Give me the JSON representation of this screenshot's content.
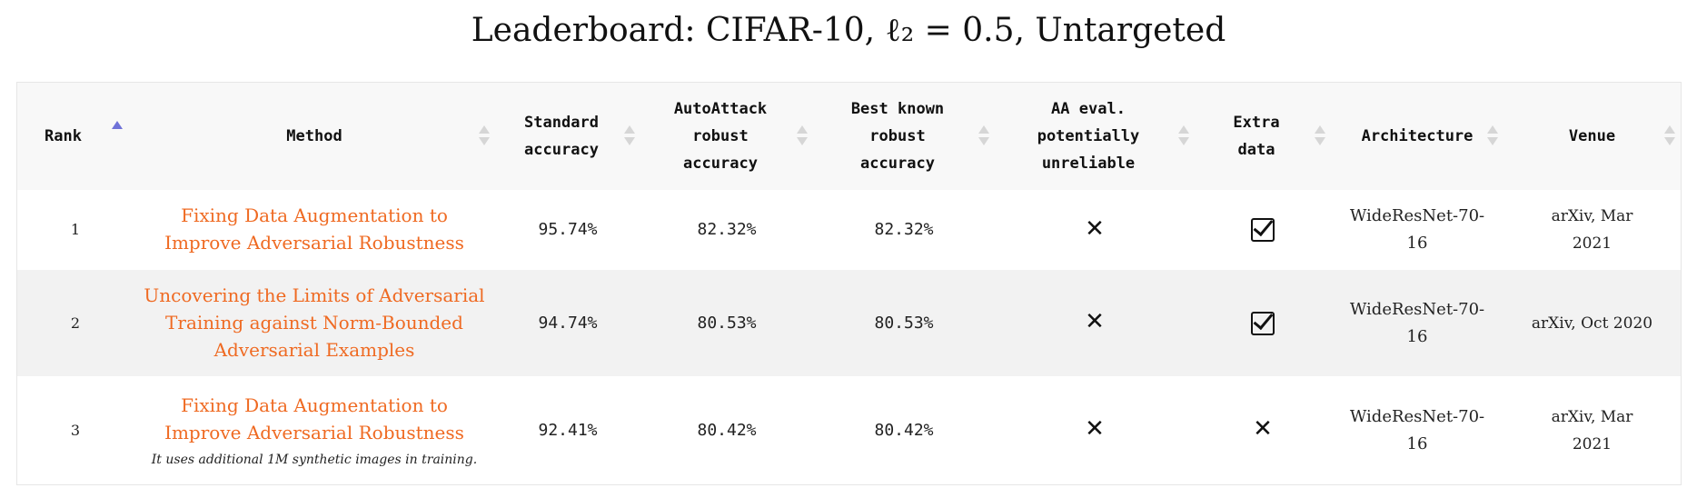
{
  "title": "Leaderboard: CIFAR-10, ℓ₂ = 0.5, Untargeted",
  "columns": [
    {
      "label": "Rank"
    },
    {
      "label": "Method"
    },
    {
      "label": "Standard accuracy"
    },
    {
      "label": "AutoAttack robust accuracy"
    },
    {
      "label": "Best known robust accuracy"
    },
    {
      "label": "AA eval. potentially unreliable"
    },
    {
      "label": "Extra data"
    },
    {
      "label": "Architecture"
    },
    {
      "label": "Venue"
    }
  ],
  "sort": {
    "column": "Rank",
    "direction": "ascending"
  },
  "rows": [
    {
      "rank": "1",
      "method_line1": "Fixing Data Augmentation to",
      "method_line2": "Improve Adversarial Robustness",
      "method_line3": "",
      "note": "",
      "standard_accuracy": "95.74%",
      "autoattack_robust_accuracy": "82.32%",
      "best_known_robust_accuracy": "82.32%",
      "aa_unreliable_icon": "x-mark-icon",
      "extra_data_icon": "checked-box-icon",
      "architecture": "WideResNet-70-16",
      "venue_line1": "arXiv, Mar",
      "venue_line2": "2021"
    },
    {
      "rank": "2",
      "method_line1": "Uncovering the Limits of Adversarial",
      "method_line2": "Training against Norm-Bounded",
      "method_line3": "Adversarial Examples",
      "note": "",
      "standard_accuracy": "94.74%",
      "autoattack_robust_accuracy": "80.53%",
      "best_known_robust_accuracy": "80.53%",
      "aa_unreliable_icon": "x-mark-icon",
      "extra_data_icon": "checked-box-icon",
      "architecture": "WideResNet-70-16",
      "venue_line1": "arXiv, Oct 2020",
      "venue_line2": ""
    },
    {
      "rank": "3",
      "method_line1": "Fixing Data Augmentation to",
      "method_line2": "Improve Adversarial Robustness",
      "method_line3": "",
      "note": "It uses additional 1M synthetic images in training.",
      "standard_accuracy": "92.41%",
      "autoattack_robust_accuracy": "80.42%",
      "best_known_robust_accuracy": "80.42%",
      "aa_unreliable_icon": "x-mark-icon",
      "extra_data_icon": "x-mark-icon",
      "architecture": "WideResNet-70-16",
      "venue_line1": "arXiv, Mar",
      "venue_line2": "2021"
    }
  ],
  "colors": {
    "link": "#ef6a22",
    "sort_active": "#6f72d8",
    "sort_inactive": "#d6d6d6",
    "header_bg": "#f8f8f8",
    "stripe_bg": "#f2f2f2"
  }
}
